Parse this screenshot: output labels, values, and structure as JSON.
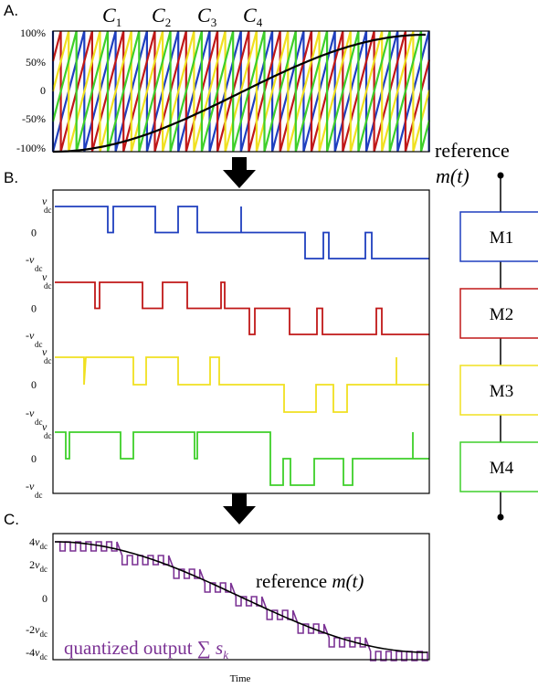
{
  "panels": {
    "a": {
      "label": "A.",
      "carriers": [
        {
          "name": "C",
          "sub": "1",
          "color": "#1f3fbf"
        },
        {
          "name": "C",
          "sub": "2",
          "color": "#c01818"
        },
        {
          "name": "C",
          "sub": "3",
          "color": "#f0e020"
        },
        {
          "name": "C",
          "sub": "4",
          "color": "#3ecf2a"
        }
      ],
      "y_ticks": [
        "100%",
        "50%",
        "0",
        "-50%",
        "-100%"
      ],
      "reference_label": "reference",
      "reference_expr": "m(t)"
    },
    "b": {
      "label": "B.",
      "levels_var": "v",
      "levels_sub": "dc",
      "zero": "0",
      "neg_sign": "-"
    },
    "c": {
      "label": "C.",
      "ticks": [
        {
          "coef": "4",
          "var": "v",
          "sub": "dc"
        },
        {
          "coef": "2",
          "var": "v",
          "sub": "dc"
        },
        {
          "coef": "0",
          "var": "",
          "sub": ""
        },
        {
          "coef": "-2",
          "var": "v",
          "sub": "dc"
        },
        {
          "coef": "-4",
          "var": "v",
          "sub": "dc"
        }
      ],
      "reference_text": "reference ",
      "reference_expr": "m(t)",
      "output_text": "quantized output ∑ ",
      "output_var": "s",
      "output_sub": "k",
      "output_color": "#7b3294",
      "xlabel": "Time"
    }
  },
  "modules": [
    {
      "label": "M1",
      "color": "#1f3fbf"
    },
    {
      "label": "M2",
      "color": "#c01818"
    },
    {
      "label": "M3",
      "color": "#f0e020"
    },
    {
      "label": "M4",
      "color": "#3ecf2a"
    }
  ],
  "icons": {
    "arrow": "down-arrow-icon",
    "terminal": "terminal-dot-icon"
  }
}
